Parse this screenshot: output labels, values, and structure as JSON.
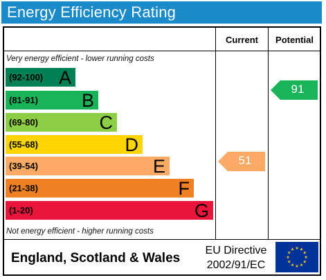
{
  "title": "Energy Efficiency Rating",
  "columns": {
    "current": "Current",
    "potential": "Potential"
  },
  "notes": {
    "top": "Very energy efficient - lower running costs",
    "bottom": "Not energy efficient - higher running costs"
  },
  "bands": [
    {
      "range": "(92-100)",
      "letter": "A",
      "color": "#008054"
    },
    {
      "range": "(81-91)",
      "letter": "B",
      "color": "#19b459"
    },
    {
      "range": "(69-80)",
      "letter": "C",
      "color": "#8dce46"
    },
    {
      "range": "(55-68)",
      "letter": "D",
      "color": "#ffd500"
    },
    {
      "range": "(39-54)",
      "letter": "E",
      "color": "#fcaa65"
    },
    {
      "range": "(21-38)",
      "letter": "F",
      "color": "#ef8023"
    },
    {
      "range": "(1-20)",
      "letter": "G",
      "color": "#e9153b"
    }
  ],
  "current": {
    "value": "51",
    "band": "E",
    "color": "#fcaa65"
  },
  "potential": {
    "value": "91",
    "band": "B",
    "color": "#19b459"
  },
  "footer": {
    "region": "England, Scotland & Wales",
    "directive_line1": "EU Directive",
    "directive_line2": "2002/91/EC",
    "flag_color": "#003399",
    "star_color": "#ffcc00"
  }
}
